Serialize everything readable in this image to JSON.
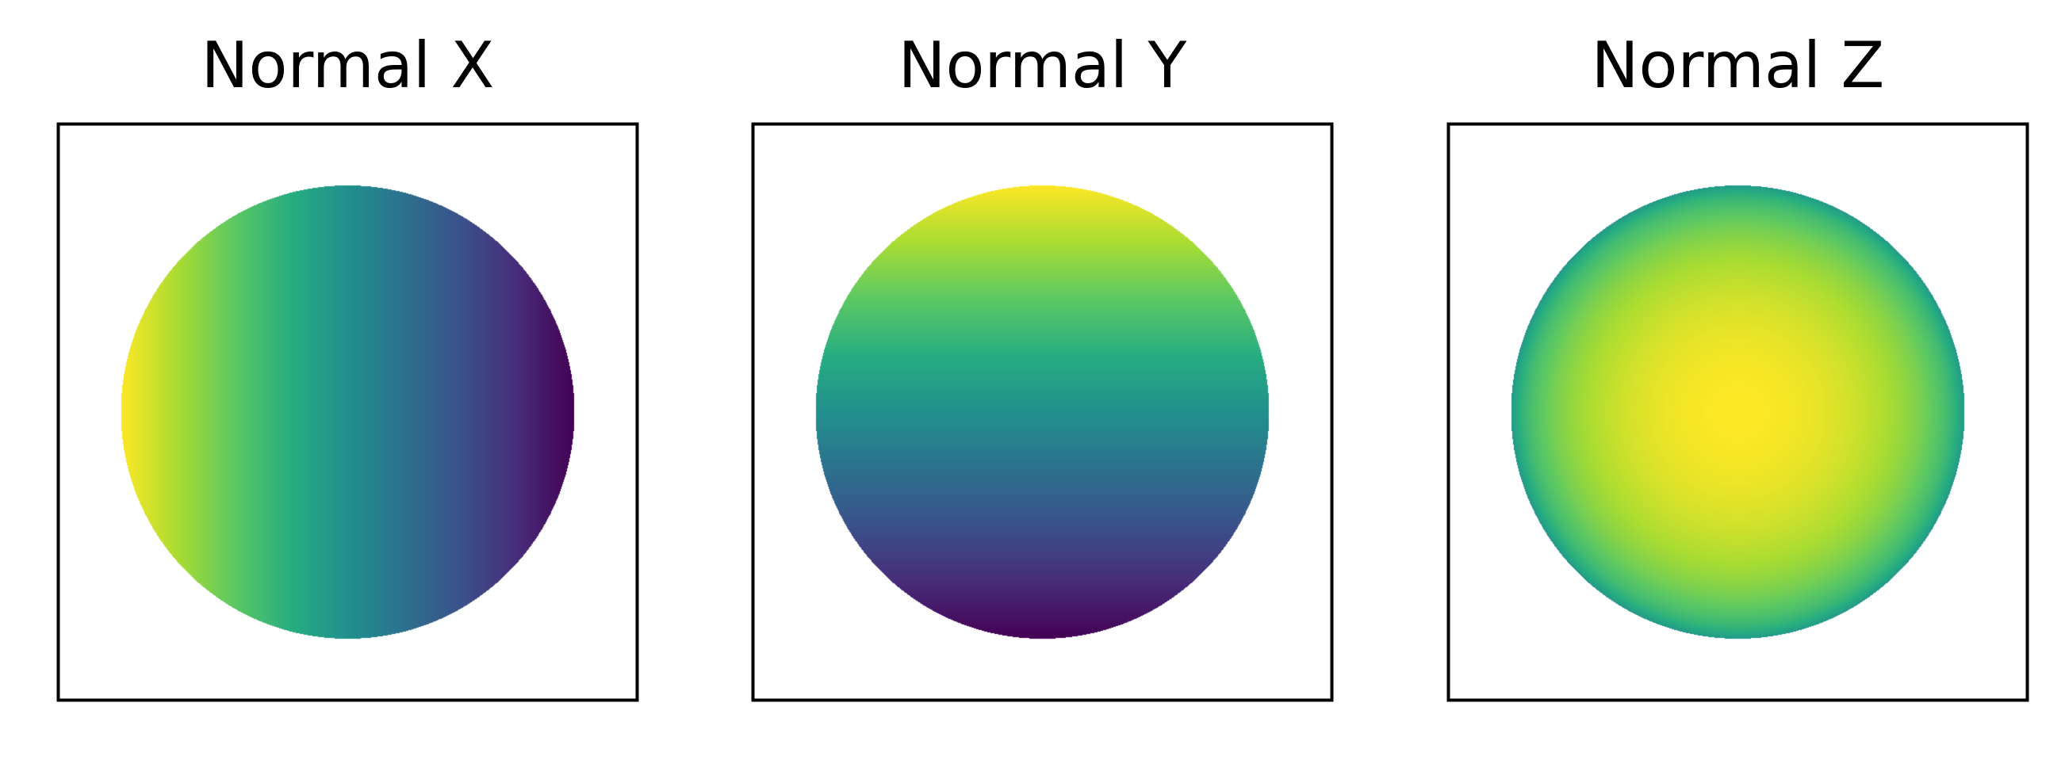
{
  "chart_data": [
    {
      "type": "heatmap",
      "title": "Normal X",
      "colormap": "viridis",
      "component": "x",
      "value_range": [
        -1,
        1
      ],
      "axes_ticks": "off",
      "shape": "sphere"
    },
    {
      "type": "heatmap",
      "title": "Normal Y",
      "colormap": "viridis",
      "component": "y",
      "value_range": [
        -1,
        1
      ],
      "axes_ticks": "off",
      "shape": "sphere"
    },
    {
      "type": "heatmap",
      "title": "Normal Z",
      "colormap": "viridis",
      "component": "z",
      "value_range": [
        -1,
        1
      ],
      "axes_ticks": "off",
      "shape": "sphere"
    }
  ],
  "colors": {
    "frame": "#000000",
    "background": "#ffffff"
  }
}
